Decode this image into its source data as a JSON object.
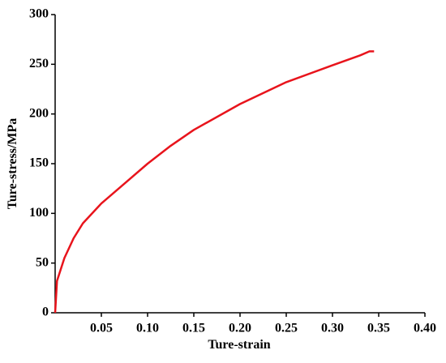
{
  "chart_data": {
    "type": "line",
    "x_label": "Ture-strain",
    "y_label": "Ture-stress/MPa",
    "x": [
      0,
      0.002,
      0.01,
      0.02,
      0.03,
      0.05,
      0.075,
      0.1,
      0.125,
      0.15,
      0.2,
      0.25,
      0.3,
      0.33,
      0.34,
      0.345
    ],
    "series": [
      {
        "name": "Ture-stress",
        "color": "#e8141c",
        "values": [
          0,
          32,
          55,
          75,
          90,
          110,
          130,
          150,
          168,
          184,
          210,
          232,
          249,
          259,
          263,
          263
        ]
      }
    ],
    "xlim": [
      0,
      0.4
    ],
    "xticks": [
      {
        "value": 0.05,
        "label": "0.05"
      },
      {
        "value": 0.1,
        "label": "0.10"
      },
      {
        "value": 0.15,
        "label": "0.15"
      },
      {
        "value": 0.2,
        "label": "0.20"
      },
      {
        "value": 0.25,
        "label": "0.25"
      },
      {
        "value": 0.3,
        "label": "0.30"
      },
      {
        "value": 0.35,
        "label": "0.35"
      },
      {
        "value": 0.4,
        "label": "0.40"
      }
    ],
    "ylim": [
      0,
      300
    ],
    "yticks": [
      0,
      50,
      100,
      150,
      200,
      250,
      300
    ]
  }
}
